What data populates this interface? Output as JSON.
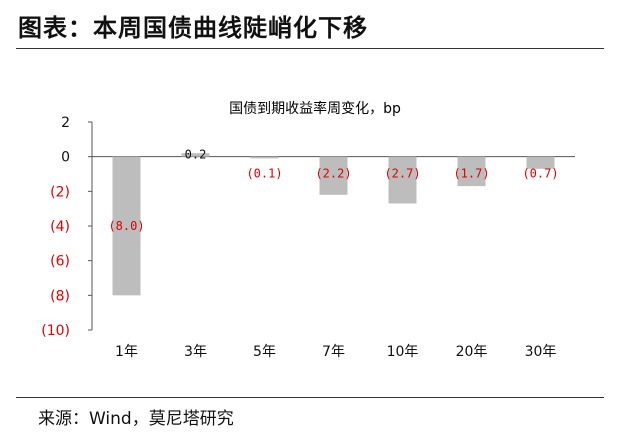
{
  "header": {
    "title": "图表：本周国债曲线陡峭化下移",
    "source": "来源：Wind，莫尼塔研究"
  },
  "chart_data": {
    "type": "bar",
    "title": "国债到期收益率周变化，bp",
    "categories": [
      "1年",
      "3年",
      "5年",
      "7年",
      "10年",
      "20年",
      "30年"
    ],
    "values": [
      -8.0,
      0.2,
      -0.1,
      -2.2,
      -2.7,
      -1.7,
      -0.7
    ],
    "data_labels": [
      "(8.0)",
      "0.2",
      "(0.1)",
      "(2.2)",
      "(2.7)",
      "(1.7)",
      "(0.7)"
    ],
    "y_ticks": [
      2,
      0,
      -2,
      -4,
      -6,
      -8,
      -10
    ],
    "y_tick_labels": [
      "2",
      "0",
      "(2)",
      "(4)",
      "(6)",
      "(8)",
      "(10)"
    ],
    "ylim": [
      -10,
      2
    ],
    "grid": false,
    "legend": "none",
    "colors": {
      "bar": "#bdbdbd",
      "negative_text": "#e00000",
      "axis": "#555555"
    }
  }
}
